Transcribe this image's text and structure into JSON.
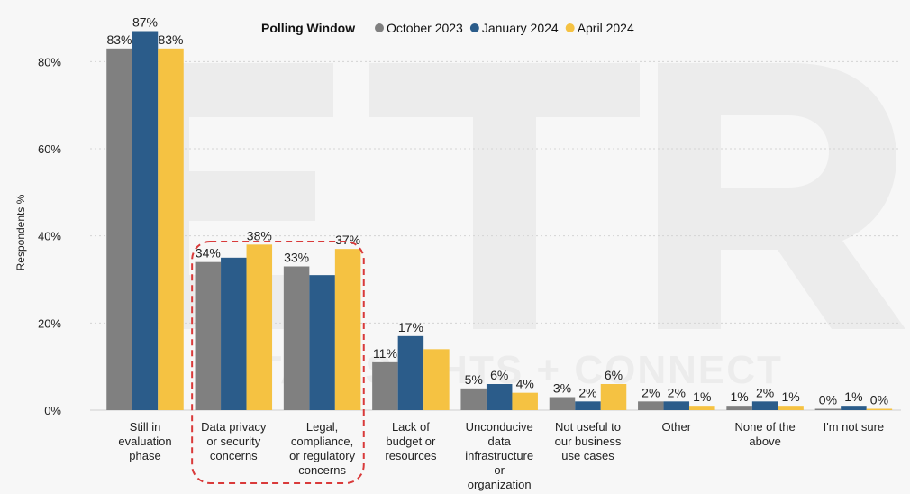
{
  "chart_data": {
    "type": "bar",
    "legend": {
      "title": "Polling Window",
      "position": "top-center"
    },
    "ylabel": "Respondents %",
    "ylim": [
      0,
      90
    ],
    "yticks": [
      {
        "value": 0,
        "label": "0%"
      },
      {
        "value": 20,
        "label": "20%"
      },
      {
        "value": 40,
        "label": "40%"
      },
      {
        "value": 60,
        "label": "60%"
      },
      {
        "value": 80,
        "label": "80%"
      }
    ],
    "grid": true,
    "categories": [
      [
        "Still in",
        "evaluation",
        "phase"
      ],
      [
        "Data privacy",
        "or security",
        "concerns"
      ],
      [
        "Legal,",
        "compliance,",
        "or regulatory",
        "concerns"
      ],
      [
        "Lack of",
        "budget or",
        "resources"
      ],
      [
        "Unconducive",
        "data",
        "infrastructure",
        "or",
        "organization"
      ],
      [
        "Not useful to",
        "our business",
        "use cases"
      ],
      [
        "Other"
      ],
      [
        "None of the",
        "above"
      ],
      [
        "I'm not sure"
      ]
    ],
    "series": [
      {
        "name": "October 2023",
        "color": "#808080",
        "values": [
          83,
          34,
          33,
          11,
          5,
          3,
          2,
          1,
          0
        ],
        "labels": [
          "83%",
          "34%",
          "33%",
          "11%",
          "5%",
          "3%",
          "2%",
          "1%",
          "0%"
        ]
      },
      {
        "name": "January 2024",
        "color": "#2b5c8a",
        "values": [
          87,
          35,
          31,
          17,
          6,
          2,
          2,
          2,
          1
        ],
        "labels": [
          "87%",
          "",
          "",
          "17%",
          "6%",
          "2%",
          "2%",
          "2%",
          "1%"
        ]
      },
      {
        "name": "April 2024",
        "color": "#f5c242",
        "values": [
          83,
          38,
          37,
          14,
          4,
          6,
          1,
          1,
          0
        ],
        "labels": [
          "83%",
          "38%",
          "37%",
          "",
          "4%",
          "6%",
          "1%",
          "1%",
          "0%"
        ]
      }
    ],
    "highlight": {
      "categories": [
        1,
        2
      ],
      "style": "dashed",
      "color": "#d93a3a"
    }
  },
  "watermark": {
    "text": "DATA INSIGHTS + CONNECT",
    "logo": "ETR"
  }
}
